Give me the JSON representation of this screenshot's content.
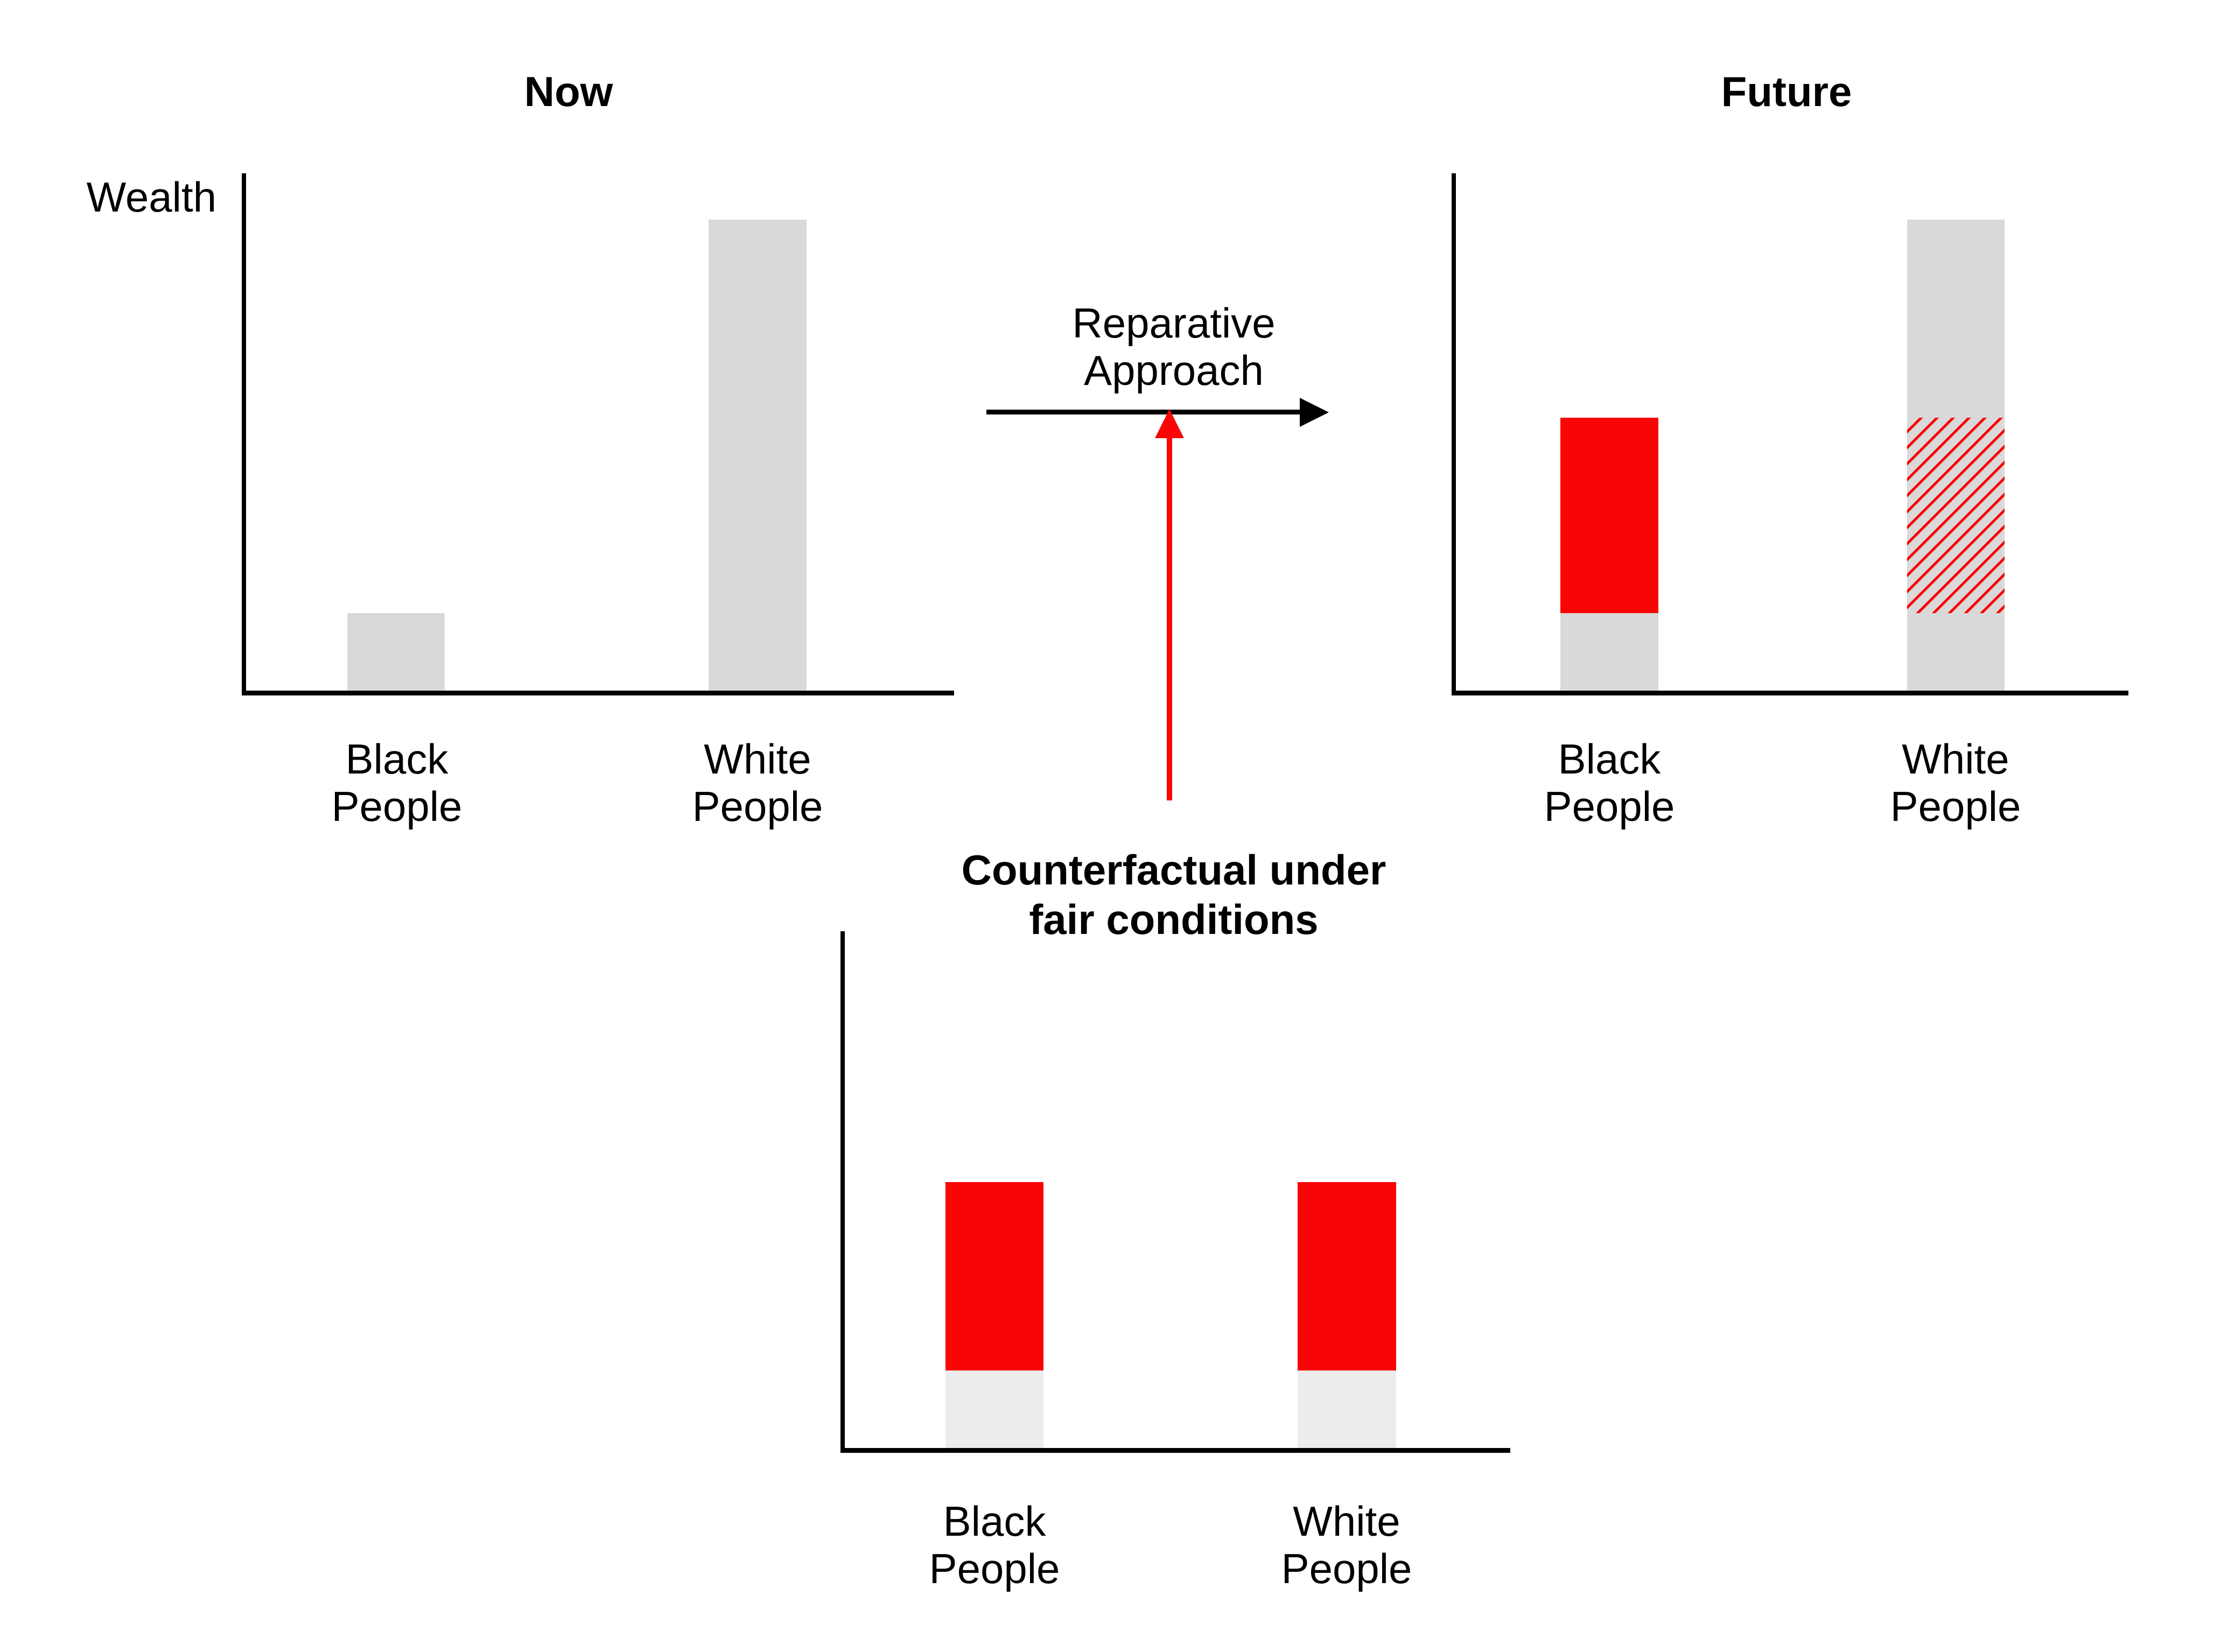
{
  "colors": {
    "bar_gray": "#D9D9D9",
    "bar_gray_light": "#ECECEC",
    "accent_red": "#F90505",
    "text": "#000000",
    "background": "#FFFFFF"
  },
  "arrow_flow": {
    "label": "Reparative\nApproach",
    "direction": "now-to-future",
    "input_arrow_color": "red",
    "input_source": "Counterfactual under fair conditions"
  },
  "chart_data": [
    {
      "id": "now",
      "type": "bar",
      "title": "Now",
      "ylabel": "Wealth",
      "xlabel": "",
      "categories": [
        "Black\nPeople",
        "White\nPeople"
      ],
      "value_unit": "relative wealth (tallest bar = 10)",
      "grid": false,
      "legend": false,
      "numeric_ticks": false,
      "series": [
        {
          "name": "Black People",
          "total": 1.65,
          "segments": [
            {
              "style": "gray",
              "value": 1.65
            }
          ]
        },
        {
          "name": "White People",
          "total": 10,
          "segments": [
            {
              "style": "gray",
              "value": 10
            }
          ]
        }
      ]
    },
    {
      "id": "future",
      "type": "bar",
      "title": "Future",
      "ylabel": "",
      "xlabel": "",
      "categories": [
        "Black\nPeople",
        "White\nPeople"
      ],
      "value_unit": "relative wealth (tallest bar = 10)",
      "grid": false,
      "legend": false,
      "numeric_ticks": false,
      "series": [
        {
          "name": "Black People",
          "total": 5.8,
          "segments": [
            {
              "style": "gray",
              "value": 1.65
            },
            {
              "style": "red",
              "value": 4.15
            }
          ]
        },
        {
          "name": "White People",
          "total": 10,
          "segments": [
            {
              "style": "gray",
              "value": 1.65
            },
            {
              "style": "hatched",
              "value": 4.15
            },
            {
              "style": "gray",
              "value": 4.2
            }
          ]
        }
      ]
    },
    {
      "id": "counterfactual",
      "type": "bar",
      "title": "Counterfactual under\nfair conditions",
      "ylabel": "",
      "xlabel": "",
      "categories": [
        "Black\nPeople",
        "White\nPeople"
      ],
      "value_unit": "relative wealth (tallest bar = 10)",
      "grid": false,
      "legend": false,
      "numeric_ticks": false,
      "series": [
        {
          "name": "Black People",
          "total": 5.65,
          "segments": [
            {
              "style": "light_gray",
              "value": 1.65
            },
            {
              "style": "red",
              "value": 4.0
            }
          ]
        },
        {
          "name": "White People",
          "total": 5.65,
          "segments": [
            {
              "style": "light_gray",
              "value": 1.65
            },
            {
              "style": "red",
              "value": 4.0
            }
          ]
        }
      ]
    }
  ]
}
